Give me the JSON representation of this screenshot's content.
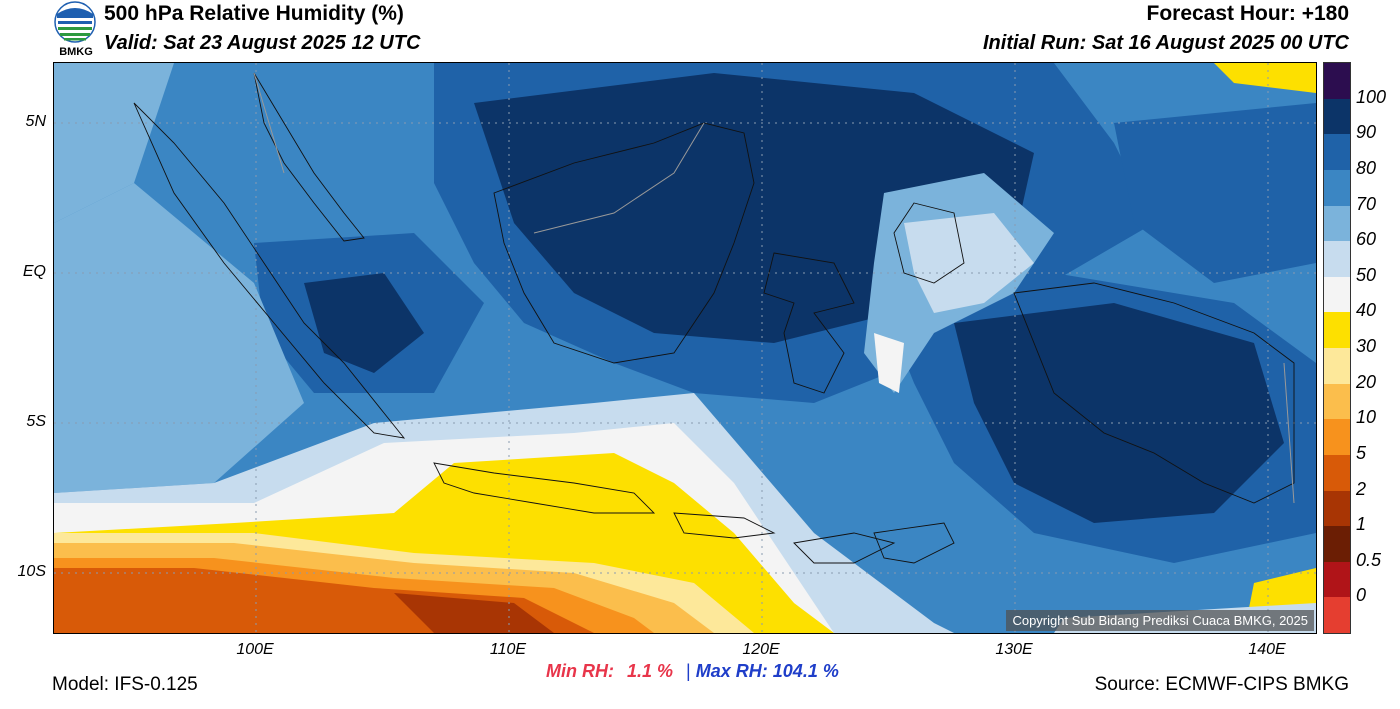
{
  "header": {
    "title": "500 hPa Relative Humidity (%)",
    "valid": "Valid: Sat 23 August 2025 12 UTC",
    "forecast_hour": "Forecast Hour: +180",
    "initial_run": "Initial Run: Sat 16 August 2025 00 UTC"
  },
  "logo": {
    "text": "BMKG",
    "icon": "bmkg-logo-icon"
  },
  "map": {
    "lat_labels": [
      "5N",
      "EQ",
      "5S",
      "10S"
    ],
    "lon_labels": [
      "100E",
      "110E",
      "120E",
      "130E",
      "140E"
    ],
    "extent": {
      "lon_min": 92,
      "lon_max": 142,
      "lat_min": -12,
      "lat_max": 7
    },
    "copyright": "Copyright Sub Bidang Prediksi Cuaca BMKG, 2025"
  },
  "colorbar": {
    "labels": [
      "100",
      "90",
      "80",
      "70",
      "60",
      "50",
      "40",
      "30",
      "20",
      "10",
      "5",
      "2",
      "1",
      "0.5",
      "0"
    ],
    "colors": [
      "#2c0d4f",
      "#0c3468",
      "#1f62a8",
      "#3b86c3",
      "#7bb3db",
      "#c7dcee",
      "#f4f4f4",
      "#fde000",
      "#fde89a",
      "#fbbe4c",
      "#f7921d",
      "#d85a08",
      "#a83504",
      "#6b1e04",
      "#b01418",
      "#e53e30"
    ]
  },
  "stats": {
    "min_label": "Min RH:",
    "min_value": "1.1 %",
    "separator": "|",
    "max_label": "Max RH:",
    "max_value": "104.1 %"
  },
  "footer": {
    "model": "Model: IFS-0.125",
    "source": "Source: ECMWF-CIPS BMKG"
  }
}
